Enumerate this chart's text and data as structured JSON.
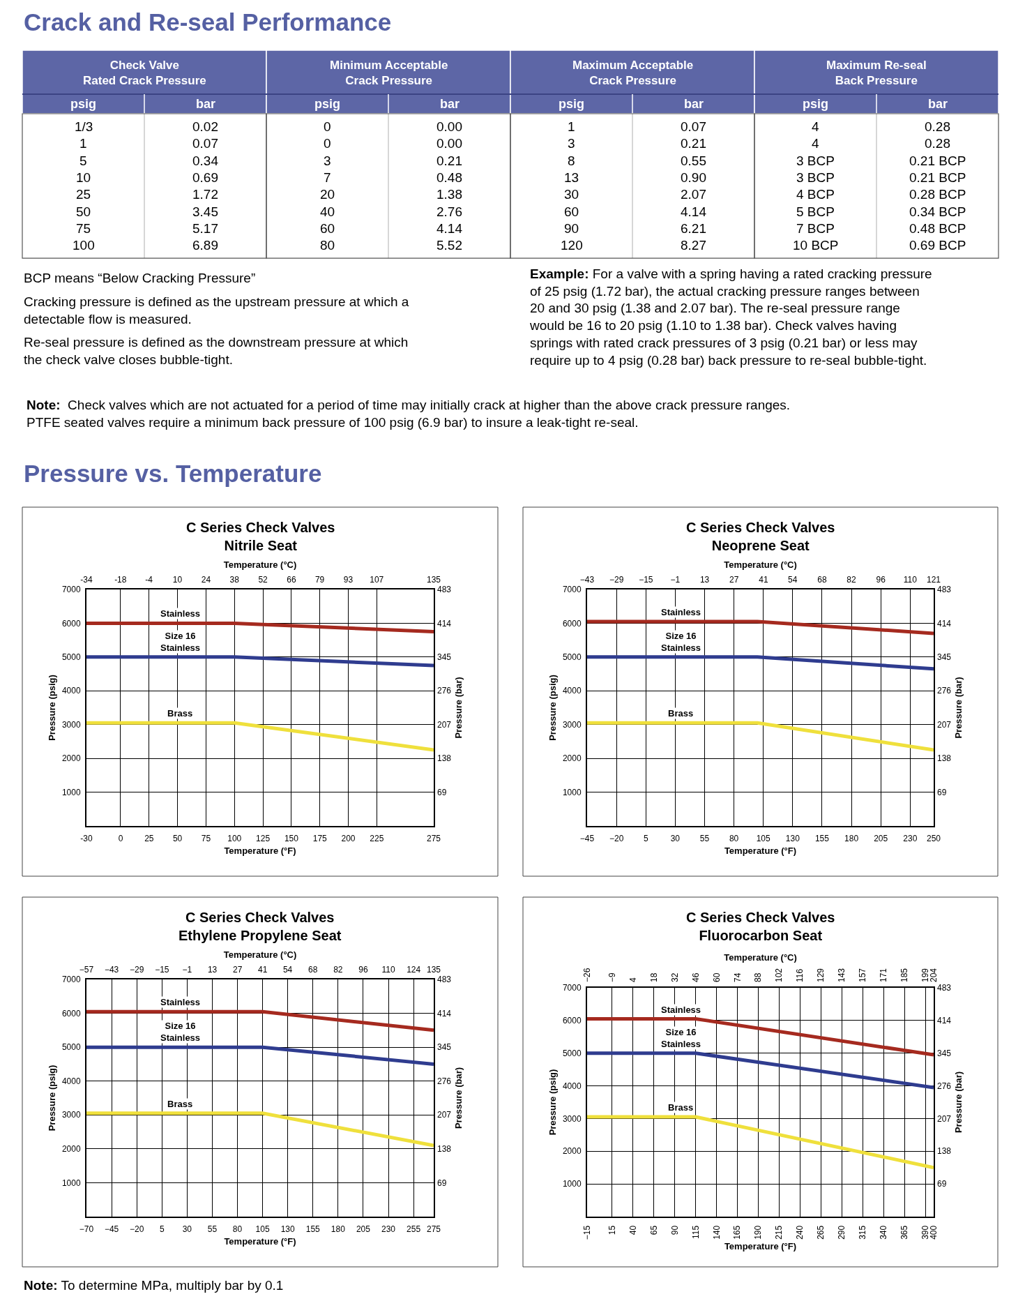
{
  "chart_data": [
    {
      "type": "other",
      "title": "Crack and Re-seal Performance"
    },
    {
      "type": "other",
      "title": "Check Valve\nRated Crack Pressure",
      "categories": [
        "psig",
        "bar"
      ],
      "cell_labels": [
        [
          "1/3",
          "0.02"
        ],
        [
          "1",
          "0.07"
        ],
        [
          "5",
          "0.34"
        ],
        [
          "10",
          "0.69"
        ],
        [
          "25",
          "1.72"
        ],
        [
          "50",
          "3.45"
        ],
        [
          "75",
          "5.17"
        ],
        [
          "100",
          "6.89"
        ]
      ]
    },
    {
      "type": "other",
      "title": "Minimum Acceptable\nCrack Pressure",
      "categories": [
        "psig",
        "bar"
      ],
      "cell_labels": [
        [
          "0",
          "0.00"
        ],
        [
          "0",
          "0.00"
        ],
        [
          "3",
          "0.21"
        ],
        [
          "7",
          "0.48"
        ],
        [
          "20",
          "1.38"
        ],
        [
          "40",
          "2.76"
        ],
        [
          "60",
          "4.14"
        ],
        [
          "80",
          "5.52"
        ]
      ]
    },
    {
      "type": "other",
      "title": "Maximum Acceptable\nCrack Pressure",
      "categories": [
        "psig",
        "bar"
      ],
      "cell_labels": [
        [
          "1",
          "0.07"
        ],
        [
          "3",
          "0.21"
        ],
        [
          "8",
          "0.55"
        ],
        [
          "13",
          "0.90"
        ],
        [
          "30",
          "2.07"
        ],
        [
          "60",
          "4.14"
        ],
        [
          "90",
          "6.21"
        ],
        [
          "120",
          "8.27"
        ]
      ]
    },
    {
      "type": "other",
      "title": "Maximum Re-seal\nBack Pressure",
      "categories": [
        "psig",
        "bar"
      ],
      "cell_labels": [
        [
          "4",
          "0.28"
        ],
        [
          "4",
          "0.28"
        ],
        [
          "3 BCP",
          "0.21 BCP"
        ],
        [
          "3 BCP",
          "0.21 BCP"
        ],
        [
          "4 BCP",
          "0.28 BCP"
        ],
        [
          "5 BCP",
          "0.34 BCP"
        ],
        [
          "7 BCP",
          "0.48 BCP"
        ],
        [
          "10 BCP",
          "0.69 BCP"
        ]
      ]
    },
    {
      "type": "other",
      "annotations": [
        "BCP means “Below Cracking Pressure”",
        "Cracking pressure is defined as the upstream pressure at which a\ndetectable flow is measured.",
        "Re-seal pressure is defined as the downstream pressure at which\nthe check valve closes bubble-tight.",
        "Example: For a valve with a spring having a rated cracking pressure\nof 25 psig (1.72 bar), the actual cracking pressure ranges between\n20 and 30 psig (1.38 and 2.07 bar). The re-seal pressure range\nwould be 16 to 20 psig (1.10 to 1.38 bar). Check valves having\nsprings with rated crack pressures of 3 psig (0.21 bar) or less may\nrequire up to 4 psig (0.28 bar) back pressure to re-seal bubble-tight.",
        "Note:  Check valves which are not actuated for a period of time may initially crack at higher than the above crack pressure ranges.\nPTFE seated valves require a minimum back pressure of 100 psig (6.9 bar) to insure a leak-tight re-seal."
      ]
    },
    {
      "type": "other",
      "title": "Pressure vs. Temperature"
    },
    {
      "type": "line",
      "title": "C Series Check Valves\nNitrile Seat",
      "x2label": "Temperature (°C)",
      "xlabel": "Temperature (°F)",
      "ylabel": "Pressure (psig)",
      "y2label": "Pressure (bar)",
      "x": [
        -30,
        100,
        275
      ],
      "xlim": [
        -30,
        275
      ],
      "xticks": [
        -30,
        0,
        25,
        50,
        75,
        100,
        125,
        150,
        175,
        200,
        225,
        275
      ],
      "x2lim": [
        -34.4,
        135
      ],
      "x2ticks": [
        {
          "value": -34.4,
          "label": "-34"
        },
        {
          "value": -17.8,
          "label": "-18"
        },
        {
          "value": -3.9,
          "label": "-4"
        },
        10,
        {
          "value": 23.9,
          "label": "24"
        },
        {
          "value": 37.8,
          "label": "38"
        },
        {
          "value": 51.7,
          "label": "52"
        },
        {
          "value": 65.6,
          "label": "66"
        },
        {
          "value": 79.4,
          "label": "79"
        },
        {
          "value": 93.3,
          "label": "93"
        },
        {
          "value": 107.2,
          "label": "107"
        },
        135
      ],
      "ylim": [
        0,
        7000
      ],
      "yticks": [
        1000,
        2000,
        3000,
        4000,
        5000,
        6000,
        7000
      ],
      "y2lim": [
        0,
        483
      ],
      "y2ticks": [
        69,
        138,
        207,
        276,
        345,
        414,
        483
      ],
      "grid": true,
      "line_style": "solid",
      "series": [
        {
          "name": "Stainless",
          "color": "#a52a1f",
          "values": [
            6000,
            6000,
            5750
          ]
        },
        {
          "name": "Size 16\nStainless",
          "color": "#2f3c8f",
          "values": [
            5000,
            5000,
            4750
          ]
        },
        {
          "name": "Brass",
          "color": "#efe03c",
          "values": [
            3050,
            3050,
            2250
          ]
        }
      ]
    },
    {
      "type": "line",
      "title": "C Series Check Valves\nNeoprene Seat",
      "x2label": "Temperature (°C)",
      "xlabel": "Temperature (°F)",
      "ylabel": "Pressure (psig)",
      "y2label": "Pressure (bar)",
      "x": [
        -45,
        100,
        250
      ],
      "xlim": [
        -45,
        250
      ],
      "xticks": [
        {
          "value": -45,
          "label": "−45"
        },
        {
          "value": -20,
          "label": "−20"
        },
        5,
        30,
        55,
        80,
        105,
        130,
        155,
        180,
        205,
        230,
        250
      ],
      "x2lim": [
        -42.8,
        121.1
      ],
      "x2ticks": [
        {
          "value": -42.8,
          "label": "−43"
        },
        {
          "value": -28.9,
          "label": "−29"
        },
        {
          "value": -15,
          "label": "−15"
        },
        {
          "value": -1.1,
          "label": "−1"
        },
        {
          "value": 12.8,
          "label": "13"
        },
        {
          "value": 26.7,
          "label": "27"
        },
        {
          "value": 40.6,
          "label": "41"
        },
        {
          "value": 54.4,
          "label": "54"
        },
        {
          "value": 68.3,
          "label": "68"
        },
        {
          "value": 82.2,
          "label": "82"
        },
        {
          "value": 96.1,
          "label": "96"
        },
        110,
        {
          "value": 121.1,
          "label": "121"
        }
      ],
      "ylim": [
        0,
        7000
      ],
      "yticks": [
        1000,
        2000,
        3000,
        4000,
        5000,
        6000,
        7000
      ],
      "y2lim": [
        0,
        483
      ],
      "y2ticks": [
        69,
        138,
        207,
        276,
        345,
        414,
        483
      ],
      "grid": true,
      "line_style": "solid",
      "series": [
        {
          "name": "Stainless",
          "color": "#a52a1f",
          "values": [
            6050,
            6050,
            5700
          ]
        },
        {
          "name": "Size 16\nStainless",
          "color": "#2f3c8f",
          "values": [
            5000,
            5000,
            4650
          ]
        },
        {
          "name": "Brass",
          "color": "#efe03c",
          "values": [
            3050,
            3050,
            2250
          ]
        }
      ]
    },
    {
      "type": "line",
      "title": "C Series Check Valves\nEthylene Propylene Seat",
      "x2label": "Temperature (°C)",
      "xlabel": "Temperature (°F)",
      "ylabel": "Pressure (psig)",
      "y2label": "Pressure (bar)",
      "x": [
        -70,
        105,
        275
      ],
      "xlim": [
        -70,
        275
      ],
      "xticks": [
        {
          "value": -70,
          "label": "−70"
        },
        {
          "value": -45,
          "label": "−45"
        },
        {
          "value": -20,
          "label": "−20"
        },
        5,
        30,
        55,
        80,
        105,
        130,
        155,
        180,
        205,
        230,
        255,
        275
      ],
      "x2lim": [
        -56.7,
        135
      ],
      "x2ticks": [
        {
          "value": -56.7,
          "label": "−57"
        },
        {
          "value": -42.8,
          "label": "−43"
        },
        {
          "value": -28.9,
          "label": "−29"
        },
        {
          "value": -15,
          "label": "−15"
        },
        {
          "value": -1.1,
          "label": "−1"
        },
        {
          "value": 12.8,
          "label": "13"
        },
        {
          "value": 26.7,
          "label": "27"
        },
        {
          "value": 40.6,
          "label": "41"
        },
        {
          "value": 54.4,
          "label": "54"
        },
        {
          "value": 68.3,
          "label": "68"
        },
        {
          "value": 82.2,
          "label": "82"
        },
        {
          "value": 96.1,
          "label": "96"
        },
        110,
        {
          "value": 123.9,
          "label": "124"
        },
        135
      ],
      "ylim": [
        0,
        7000
      ],
      "yticks": [
        1000,
        2000,
        3000,
        4000,
        5000,
        6000,
        7000
      ],
      "y2lim": [
        0,
        483
      ],
      "y2ticks": [
        69,
        138,
        207,
        276,
        345,
        414,
        483
      ],
      "grid": true,
      "line_style": "solid",
      "series": [
        {
          "name": "Stainless",
          "color": "#a52a1f",
          "values": [
            6050,
            6050,
            5500
          ]
        },
        {
          "name": "Size 16\nStainless",
          "color": "#2f3c8f",
          "values": [
            5000,
            5000,
            4500
          ]
        },
        {
          "name": "Brass",
          "color": "#efe03c",
          "values": [
            3050,
            3050,
            2100
          ]
        }
      ]
    },
    {
      "type": "line",
      "title": "C Series Check Valves\nFluorocarbon Seat",
      "x2label": "Temperature (°C)",
      "xlabel": "Temperature (°F)",
      "ylabel": "Pressure (psig)",
      "y2label": "Pressure (bar)",
      "x": [
        -15,
        115,
        400
      ],
      "xlim": [
        -15,
        400
      ],
      "xticks": [
        {
          "value": -15,
          "label": "−15"
        },
        15,
        40,
        65,
        90,
        115,
        140,
        165,
        190,
        215,
        240,
        265,
        290,
        315,
        340,
        365,
        390,
        400
      ],
      "x2lim": [
        -26.1,
        204.4
      ],
      "x2ticks": [
        {
          "value": -26.1,
          "label": "−26"
        },
        {
          "value": -9.4,
          "label": "−9"
        },
        {
          "value": 4.4,
          "label": "4"
        },
        {
          "value": 18.3,
          "label": "18"
        },
        {
          "value": 32.2,
          "label": "32"
        },
        {
          "value": 46.1,
          "label": "46"
        },
        60,
        {
          "value": 73.9,
          "label": "74"
        },
        {
          "value": 87.8,
          "label": "88"
        },
        {
          "value": 101.7,
          "label": "102"
        },
        {
          "value": 115.6,
          "label": "116"
        },
        {
          "value": 129.4,
          "label": "129"
        },
        {
          "value": 143.3,
          "label": "143"
        },
        {
          "value": 157.2,
          "label": "157"
        },
        {
          "value": 171.1,
          "label": "171"
        },
        185,
        {
          "value": 198.9,
          "label": "199"
        },
        {
          "value": 204.4,
          "label": "204"
        }
      ],
      "ylim": [
        0,
        7000
      ],
      "yticks": [
        1000,
        2000,
        3000,
        4000,
        5000,
        6000,
        7000
      ],
      "y2lim": [
        0,
        483
      ],
      "y2ticks": [
        69,
        138,
        207,
        276,
        345,
        414,
        483
      ],
      "grid": true,
      "line_style": "solid",
      "series": [
        {
          "name": "Stainless",
          "color": "#a52a1f",
          "values": [
            6050,
            6050,
            4950
          ]
        },
        {
          "name": "Size 16\nStainless",
          "color": "#2f3c8f",
          "values": [
            5000,
            5000,
            3950
          ]
        },
        {
          "name": "Brass",
          "color": "#efe03c",
          "values": [
            3050,
            3050,
            1500
          ]
        }
      ]
    },
    {
      "type": "other",
      "annotations": [
        "Note: To determine MPa, multiply bar by 0.1"
      ]
    }
  ]
}
